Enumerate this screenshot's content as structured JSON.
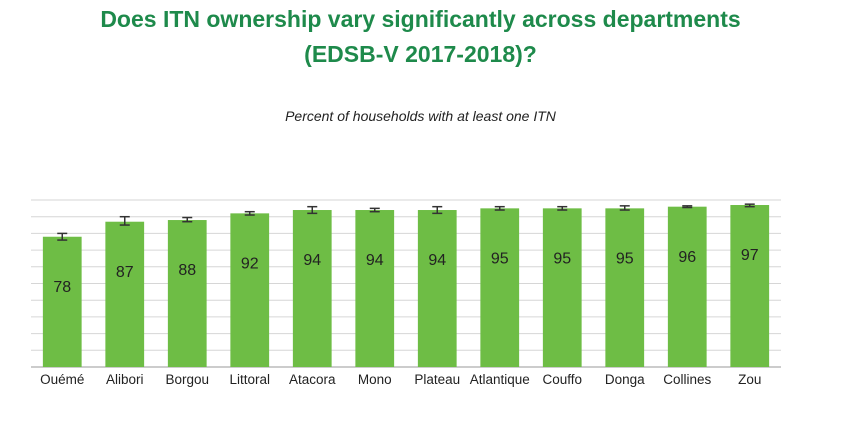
{
  "title_line1": "Does ITN ownership vary significantly across departments",
  "title_line2": "(EDSB-V 2017-2018)?",
  "colors": {
    "title": "#1e8a4b",
    "bar": "#6ebd45",
    "grid": "#d6d6d6",
    "text": "#222222"
  },
  "chart_data": {
    "type": "bar",
    "title": "Percent of households with at least one ITN",
    "xlabel": "",
    "ylabel": "",
    "ylim": [
      0,
      100
    ],
    "grid": true,
    "error_bars": true,
    "categories": [
      "Ouémé",
      "Alibori",
      "Borgou",
      "Littoral",
      "Atacora",
      "Mono",
      "Plateau",
      "Atlantique",
      "Couffo",
      "Donga",
      "Collines",
      "Zou"
    ],
    "values": [
      78,
      87,
      88,
      92,
      94,
      94,
      94,
      95,
      95,
      95,
      96,
      97
    ],
    "error_low": [
      76,
      85,
      87,
      91,
      92,
      93,
      92,
      94,
      94,
      94,
      95.5,
      96
    ],
    "error_high": [
      80,
      90,
      89.5,
      93,
      96,
      95,
      96,
      96,
      96,
      96.5,
      96.5,
      97.5
    ]
  }
}
